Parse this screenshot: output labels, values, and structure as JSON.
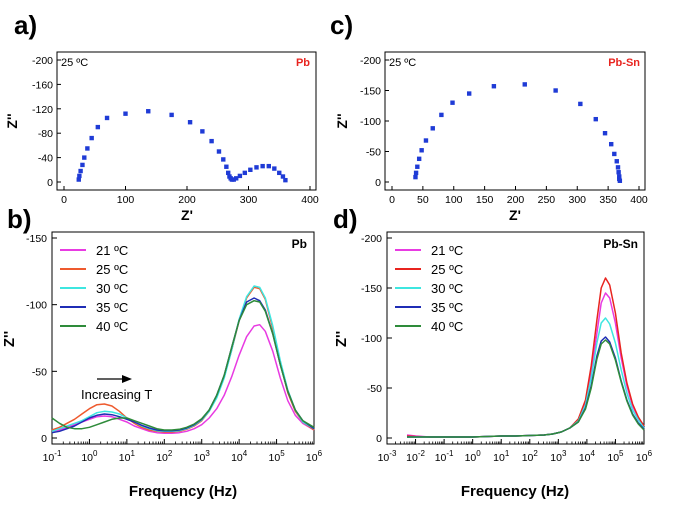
{
  "chart_data": [
    {
      "panel_label": "a)",
      "type": "scatter",
      "temperature_note": "25 ºC",
      "sample_label": "Pb",
      "xlabel": "Z'",
      "ylabel": "Z''",
      "xlim": [
        0,
        400
      ],
      "ylim": [
        -200,
        0
      ],
      "yreversed": true,
      "xticks": [
        "0",
        "100",
        "200",
        "300",
        "400"
      ],
      "yticks": [
        "-200",
        "-160",
        "-120",
        "-80",
        "-40",
        "0"
      ],
      "marker_color": "#1f3bd6",
      "series": [
        {
          "x": [
            24,
            25,
            27,
            30,
            33,
            38,
            45,
            55,
            70,
            100,
            137,
            175,
            205,
            225,
            240,
            252,
            259,
            264,
            267,
            269,
            271,
            273,
            276,
            280,
            286,
            294,
            303,
            313,
            323,
            333,
            342,
            350,
            356,
            360
          ],
          "y": [
            -4,
            -10,
            -18,
            -28,
            -40,
            -55,
            -72,
            -90,
            -105,
            -112,
            -116,
            -110,
            -98,
            -83,
            -67,
            -50,
            -37,
            -25,
            -15,
            -9,
            -6,
            -4,
            -4,
            -6,
            -10,
            -15,
            -20,
            -24,
            -26,
            -26,
            -22,
            -15,
            -9,
            -3
          ]
        }
      ]
    },
    {
      "panel_label": "c)",
      "type": "scatter",
      "temperature_note": "25 ºC",
      "sample_label": "Pb-Sn",
      "xlabel": "Z'",
      "ylabel": "Z''",
      "xlim": [
        0,
        400
      ],
      "ylim": [
        -200,
        0
      ],
      "yreversed": true,
      "xticks": [
        "0",
        "50",
        "100",
        "150",
        "200",
        "250",
        "300",
        "350",
        "400"
      ],
      "yticks": [
        "-200",
        "-150",
        "-100",
        "-50",
        "0"
      ],
      "marker_color": "#1f3bd6",
      "series": [
        {
          "x": [
            38,
            39,
            41,
            44,
            48,
            55,
            66,
            80,
            98,
            125,
            165,
            215,
            265,
            305,
            330,
            345,
            355,
            360,
            364,
            366,
            367,
            368,
            368,
            369
          ],
          "y": [
            -8,
            -15,
            -25,
            -38,
            -52,
            -68,
            -88,
            -110,
            -130,
            -145,
            -157,
            -160,
            -150,
            -128,
            -103,
            -80,
            -62,
            -46,
            -34,
            -24,
            -16,
            -9,
            -5,
            -2
          ]
        }
      ]
    },
    {
      "panel_label": "b)",
      "type": "line",
      "sample_label": "Pb",
      "xlabel": "Frequency (Hz)",
      "ylabel": "Z''",
      "xscale": "log",
      "xlim_exp": [
        -1,
        6
      ],
      "ylim": [
        -150,
        0
      ],
      "yreversed": true,
      "xtick_exponents": [
        "-1",
        "0",
        "1",
        "2",
        "3",
        "4",
        "5",
        "6"
      ],
      "yticks": [
        "-150",
        "-100",
        "-50",
        "0"
      ],
      "annotation": "Increasing T",
      "series": [
        {
          "name": "21 ºC",
          "color": "#e83be2",
          "x": [
            -1,
            -0.8,
            -0.6,
            -0.4,
            -0.2,
            0,
            0.2,
            0.4,
            0.6,
            0.8,
            1,
            1.2,
            1.4,
            1.6,
            1.8,
            2,
            2.2,
            2.4,
            2.6,
            2.8,
            3,
            3.2,
            3.4,
            3.6,
            3.8,
            4,
            4.2,
            4.4,
            4.55,
            4.7,
            4.9,
            5.1,
            5.3,
            5.5,
            5.7,
            6
          ],
          "y": [
            -5,
            -6,
            -8,
            -10,
            -12,
            -14,
            -16,
            -16.5,
            -16,
            -14,
            -12,
            -9,
            -7,
            -5,
            -4,
            -3.5,
            -3.5,
            -4,
            -5,
            -7,
            -10,
            -15,
            -22,
            -32,
            -46,
            -62,
            -76,
            -84,
            -85,
            -80,
            -65,
            -45,
            -28,
            -17,
            -11,
            -6
          ]
        },
        {
          "name": "25 ºC",
          "color": "#ee5a2e",
          "x": [
            -1,
            -0.8,
            -0.6,
            -0.4,
            -0.2,
            0,
            0.2,
            0.4,
            0.6,
            0.8,
            1,
            1.2,
            1.4,
            1.6,
            1.8,
            2,
            2.2,
            2.4,
            2.6,
            2.8,
            3,
            3.2,
            3.4,
            3.6,
            3.8,
            4,
            4.2,
            4.4,
            4.55,
            4.7,
            4.9,
            5.1,
            5.3,
            5.5,
            5.7,
            6
          ],
          "y": [
            -6,
            -8,
            -11,
            -14,
            -18,
            -22,
            -25,
            -25.5,
            -24,
            -20,
            -15,
            -11,
            -8,
            -6,
            -5,
            -4.5,
            -4.5,
            -5,
            -6.5,
            -9,
            -13,
            -20,
            -31,
            -46,
            -66,
            -88,
            -105,
            -113,
            -112,
            -104,
            -82,
            -56,
            -34,
            -20,
            -12,
            -6
          ]
        },
        {
          "name": "30 ºC",
          "color": "#3ee6e0",
          "x": [
            -1,
            -0.8,
            -0.6,
            -0.4,
            -0.2,
            0,
            0.2,
            0.4,
            0.6,
            0.8,
            1,
            1.2,
            1.4,
            1.6,
            1.8,
            2,
            2.2,
            2.4,
            2.6,
            2.8,
            3,
            3.2,
            3.4,
            3.6,
            3.8,
            4,
            4.2,
            4.4,
            4.55,
            4.7,
            4.9,
            5.1,
            5.3,
            5.5,
            5.7,
            6
          ],
          "y": [
            -5,
            -7,
            -9,
            -11,
            -13,
            -16,
            -19,
            -20,
            -19.5,
            -18,
            -15,
            -12,
            -9,
            -7,
            -5.5,
            -5,
            -5,
            -5.5,
            -7,
            -9.5,
            -13.5,
            -20,
            -30,
            -45,
            -66,
            -89,
            -106,
            -114,
            -113,
            -105,
            -84,
            -58,
            -36,
            -21,
            -12,
            -7
          ]
        },
        {
          "name": "35 ºC",
          "color": "#1f2db5",
          "x": [
            -1,
            -0.8,
            -0.6,
            -0.4,
            -0.2,
            0,
            0.2,
            0.4,
            0.6,
            0.8,
            1,
            1.2,
            1.4,
            1.6,
            1.8,
            2,
            2.2,
            2.4,
            2.6,
            2.8,
            3,
            3.2,
            3.4,
            3.6,
            3.8,
            4,
            4.2,
            4.4,
            4.55,
            4.7,
            4.9,
            5.1,
            5.3,
            5.5,
            5.7,
            6
          ],
          "y": [
            -4,
            -5,
            -7,
            -9,
            -12,
            -15,
            -17,
            -18,
            -17.5,
            -16,
            -14,
            -12,
            -9.5,
            -7.5,
            -6,
            -5.5,
            -5.5,
            -6,
            -7.5,
            -10,
            -14,
            -21,
            -32,
            -47,
            -68,
            -88,
            -102,
            -105,
            -103,
            -96,
            -78,
            -55,
            -35,
            -21,
            -13,
            -7
          ]
        },
        {
          "name": "40 ºC",
          "color": "#2e8b3a",
          "x": [
            -1,
            -0.8,
            -0.6,
            -0.4,
            -0.2,
            0,
            0.2,
            0.4,
            0.6,
            0.8,
            1,
            1.2,
            1.4,
            1.6,
            1.8,
            2,
            2.2,
            2.4,
            2.6,
            2.8,
            3,
            3.2,
            3.4,
            3.6,
            3.8,
            4,
            4.2,
            4.4,
            4.55,
            4.7,
            4.9,
            5.1,
            5.3,
            5.5,
            5.7,
            6
          ],
          "y": [
            -15,
            -11,
            -8,
            -7,
            -7,
            -8,
            -10,
            -12,
            -14,
            -15,
            -15,
            -13,
            -11,
            -9,
            -7,
            -6,
            -6,
            -6.5,
            -8,
            -10.5,
            -14.5,
            -21,
            -32,
            -47,
            -68,
            -88,
            -100,
            -103,
            -102,
            -95,
            -78,
            -55,
            -35,
            -21,
            -13,
            -8
          ]
        }
      ]
    },
    {
      "panel_label": "d)",
      "type": "line",
      "sample_label": "Pb-Sn",
      "xlabel": "Frequency (Hz)",
      "ylabel": "Z''",
      "xscale": "log",
      "xlim_exp": [
        -3,
        6
      ],
      "ylim": [
        -200,
        0
      ],
      "yreversed": true,
      "xtick_exponents": [
        "-3",
        "-2",
        "-1",
        "0",
        "1",
        "2",
        "3",
        "4",
        "5",
        "6"
      ],
      "yticks": [
        "-200",
        "-150",
        "-100",
        "-50",
        "0"
      ],
      "series": [
        {
          "name": "21 ºC",
          "color": "#e83be2",
          "x": [
            -2.3,
            -2,
            -1.5,
            -1,
            -0.5,
            0,
            0.5,
            1,
            1.5,
            2,
            2.5,
            2.8,
            3.1,
            3.4,
            3.7,
            3.95,
            4.15,
            4.35,
            4.5,
            4.65,
            4.8,
            5,
            5.2,
            5.4,
            5.6,
            5.8,
            6
          ],
          "y": [
            -3,
            -2,
            -1,
            -1,
            -1,
            -1,
            -1.5,
            -2,
            -2,
            -2.5,
            -3,
            -4,
            -6,
            -10,
            -18,
            -35,
            -65,
            -105,
            -135,
            -145,
            -140,
            -115,
            -80,
            -52,
            -32,
            -20,
            -12
          ]
        },
        {
          "name": "25 ºC",
          "color": "#e8241f",
          "x": [
            -2.3,
            -2,
            -1.5,
            -1,
            -0.5,
            0,
            0.5,
            1,
            1.5,
            2,
            2.5,
            2.8,
            3.1,
            3.4,
            3.7,
            3.95,
            4.15,
            4.35,
            4.5,
            4.65,
            4.8,
            5,
            5.2,
            5.4,
            5.6,
            5.8,
            6
          ],
          "y": [
            -2,
            -1.5,
            -1,
            -1,
            -1,
            -1,
            -1.5,
            -2,
            -2,
            -2.5,
            -3,
            -4,
            -6,
            -10,
            -19,
            -38,
            -72,
            -118,
            -150,
            -160,
            -153,
            -125,
            -85,
            -55,
            -34,
            -21,
            -12
          ]
        },
        {
          "name": "30 ºC",
          "color": "#3ee6e0",
          "x": [
            -2.3,
            -2,
            -1.5,
            -1,
            -0.5,
            0,
            0.5,
            1,
            1.5,
            2,
            2.5,
            2.8,
            3.1,
            3.4,
            3.7,
            3.95,
            4.15,
            4.35,
            4.5,
            4.65,
            4.8,
            5,
            5.2,
            5.4,
            5.6,
            5.8,
            6
          ],
          "y": [
            -1,
            -1,
            -1,
            -1,
            -1,
            -1,
            -1.5,
            -2,
            -2,
            -2.5,
            -3,
            -4,
            -6,
            -10,
            -17,
            -33,
            -60,
            -95,
            -115,
            -120,
            -114,
            -95,
            -68,
            -45,
            -28,
            -18,
            -10
          ]
        },
        {
          "name": "35 ºC",
          "color": "#1f2db5",
          "x": [
            -2.3,
            -2,
            -1.5,
            -1,
            -0.5,
            0,
            0.5,
            1,
            1.5,
            2,
            2.5,
            2.8,
            3.1,
            3.4,
            3.7,
            3.95,
            4.15,
            4.35,
            4.5,
            4.65,
            4.8,
            5,
            5.2,
            5.4,
            5.6,
            5.8,
            6
          ],
          "y": [
            -1,
            -1,
            -1,
            -1,
            -1,
            -1,
            -1.5,
            -2,
            -2,
            -2.5,
            -3,
            -4,
            -6,
            -10,
            -16,
            -30,
            -52,
            -82,
            -97,
            -101,
            -96,
            -80,
            -57,
            -38,
            -24,
            -15,
            -9
          ]
        },
        {
          "name": "40 ºC",
          "color": "#2e8b3a",
          "x": [
            -2.3,
            -2,
            -1.5,
            -1,
            -0.5,
            0,
            0.5,
            1,
            1.5,
            2,
            2.5,
            2.8,
            3.1,
            3.4,
            3.7,
            3.95,
            4.15,
            4.35,
            4.5,
            4.65,
            4.8,
            5,
            5.2,
            5.4,
            5.6,
            5.8,
            6
          ],
          "y": [
            -1,
            -1,
            -1,
            -1,
            -1,
            -1,
            -1.5,
            -2,
            -2,
            -2.5,
            -3,
            -4,
            -6,
            -10,
            -16,
            -29,
            -50,
            -79,
            -94,
            -98,
            -94,
            -78,
            -56,
            -37,
            -23,
            -14,
            -8
          ]
        }
      ]
    }
  ]
}
